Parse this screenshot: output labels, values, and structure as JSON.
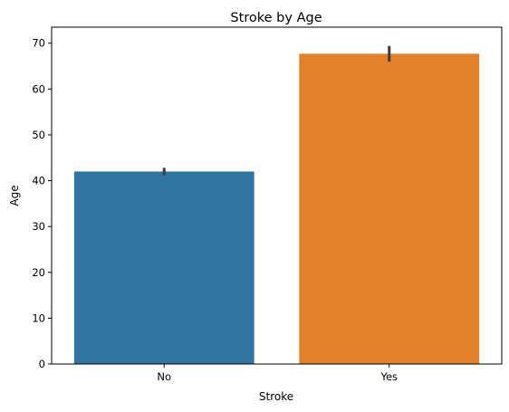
{
  "chart_data": {
    "type": "bar",
    "title": "Stroke by Age",
    "xlabel": "Stroke",
    "ylabel": "Age",
    "categories": [
      "No",
      "Yes"
    ],
    "values": [
      42.0,
      67.7
    ],
    "error_bars": [
      [
        41.2,
        42.8
      ],
      [
        66.0,
        69.4
      ]
    ],
    "ylim": [
      0,
      73.5
    ],
    "yticks": [
      "0",
      "10",
      "20",
      "30",
      "40",
      "50",
      "60",
      "70"
    ],
    "colors": [
      "#3274a1",
      "#e1812c"
    ],
    "grid": false,
    "legend": "none"
  }
}
